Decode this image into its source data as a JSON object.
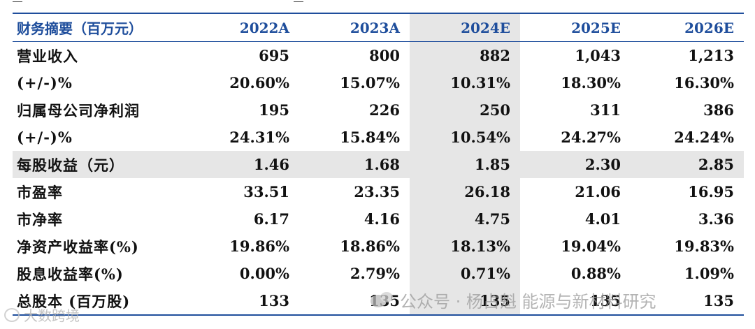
{
  "table": {
    "headers": [
      "财务摘要（百万元）",
      "2022A",
      "2023A",
      "2024E",
      "2025E",
      "2026E"
    ],
    "rows": [
      {
        "label": "营业收入",
        "values": [
          "695",
          "800",
          "882",
          "1,043",
          "1,213"
        ]
      },
      {
        "label": "(+/-)%",
        "values": [
          "20.60%",
          "15.07%",
          "10.31%",
          "18.30%",
          "16.30%"
        ]
      },
      {
        "label": "归属母公司净利润",
        "values": [
          "195",
          "226",
          "250",
          "311",
          "386"
        ]
      },
      {
        "label": "(+/-)%",
        "values": [
          "24.31%",
          "15.84%",
          "10.54%",
          "24.27%",
          "24.24%"
        ]
      },
      {
        "label": "每股收益（元）",
        "values": [
          "1.46",
          "1.68",
          "1.85",
          "2.30",
          "2.85"
        ]
      },
      {
        "label": "市盈率",
        "values": [
          "33.51",
          "23.35",
          "26.18",
          "21.06",
          "16.95"
        ]
      },
      {
        "label": "市净率",
        "values": [
          "6.17",
          "4.16",
          "4.75",
          "4.01",
          "3.36"
        ]
      },
      {
        "label": "净资产收益率(%)",
        "values": [
          "19.86%",
          "18.86%",
          "18.13%",
          "19.04%",
          "19.83%"
        ]
      },
      {
        "label": "股息收益率(%)",
        "values": [
          "0.00%",
          "2.79%",
          "0.71%",
          "0.88%",
          "1.09%"
        ]
      },
      {
        "label": "总股本 (百万股)",
        "values": [
          "133",
          "135",
          "135",
          "135",
          "135"
        ]
      }
    ]
  },
  "watermark": {
    "text": "公众号 · 杨占魁 能源与新材料研究",
    "left_text": "大数跨境"
  },
  "colors": {
    "header_text": "#1f4e9c",
    "rule": "#1f4e9c",
    "highlight": "#e6e6e6"
  }
}
